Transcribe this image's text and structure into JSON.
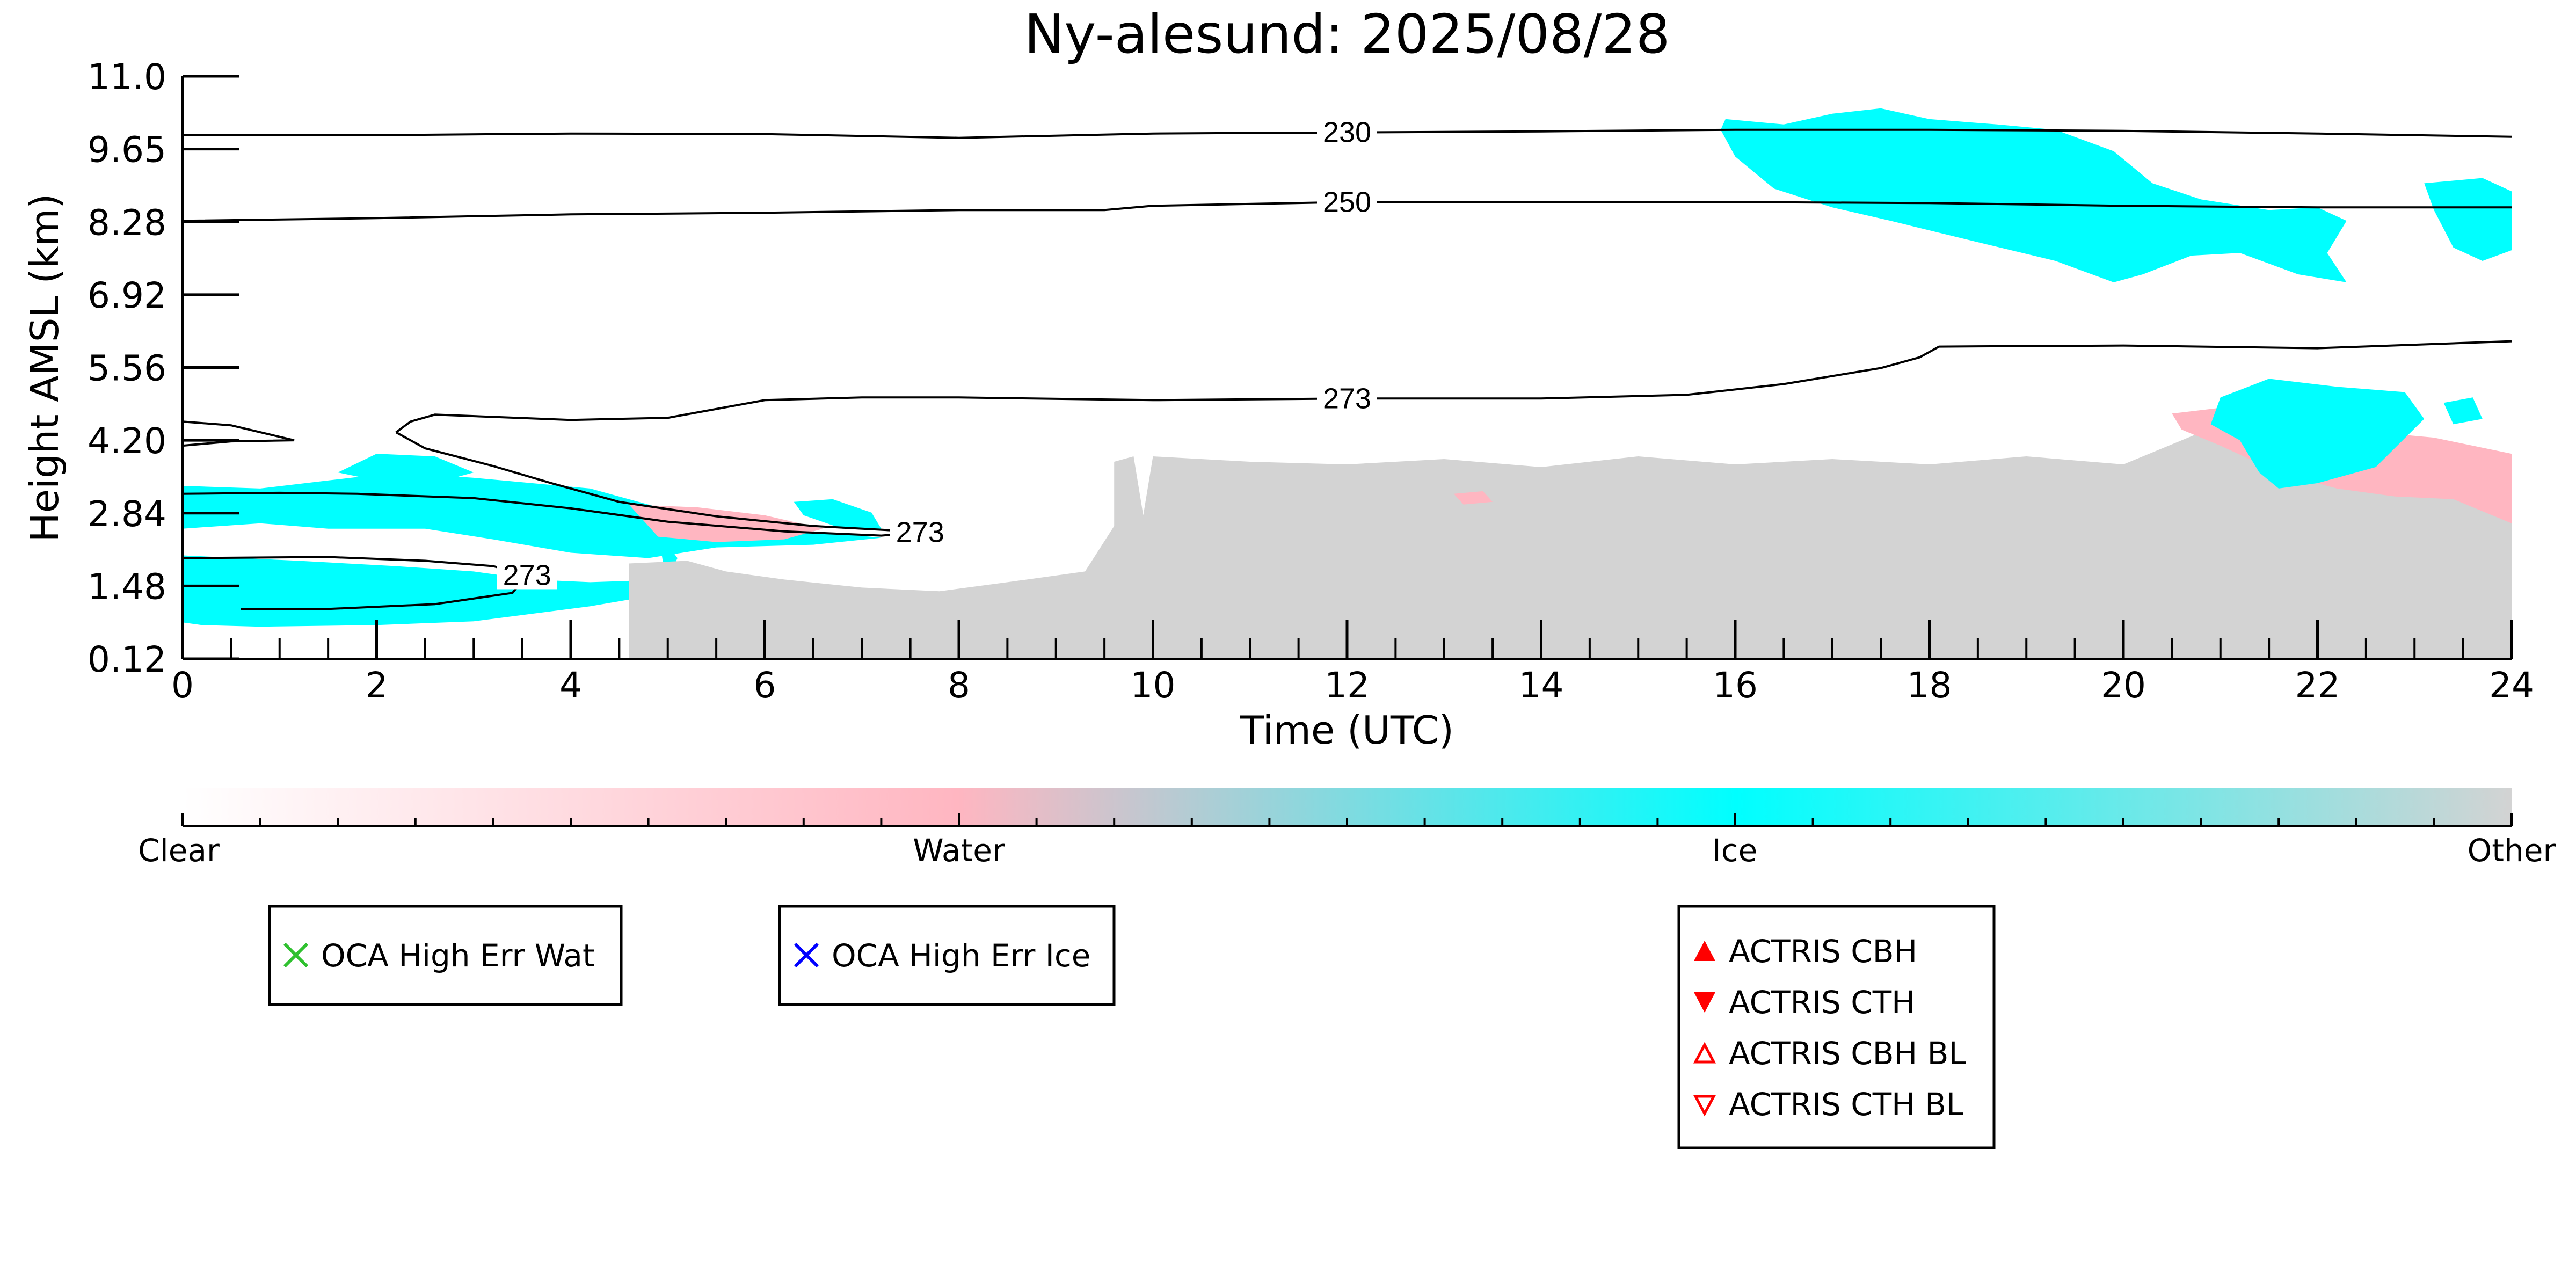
{
  "chart_data": {
    "type": "heatmap",
    "title": "Ny-alesund: 2025/08/28",
    "xlabel": "Time (UTC)",
    "ylabel": "Height AMSL (km)",
    "xlim": [
      0,
      24
    ],
    "ylim": [
      0.12,
      11.0
    ],
    "x_ticks": [
      "0",
      "2",
      "4",
      "6",
      "8",
      "10",
      "12",
      "14",
      "16",
      "18",
      "20",
      "22",
      "24"
    ],
    "y_ticks": [
      "0.12",
      "1.48",
      "2.84",
      "4.20",
      "5.56",
      "6.92",
      "8.28",
      "9.65",
      "11.0"
    ],
    "colors": {
      "clear": "#ffffff",
      "water": "#ffb6c1",
      "ice": "#00ffff",
      "other": "#d3d3d3"
    },
    "colorbar": {
      "labels": [
        "Clear",
        "Water",
        "Ice",
        "Other"
      ]
    },
    "contours": [
      {
        "level": "230",
        "points": [
          [
            0,
            9.9
          ],
          [
            2,
            9.9
          ],
          [
            4,
            9.93
          ],
          [
            6,
            9.92
          ],
          [
            8,
            9.85
          ],
          [
            10,
            9.93
          ],
          [
            12,
            9.95
          ],
          [
            14,
            9.97
          ],
          [
            16,
            10.0
          ],
          [
            18,
            10.0
          ],
          [
            20,
            9.98
          ],
          [
            22,
            9.93
          ],
          [
            24,
            9.87
          ]
        ]
      },
      {
        "level": "250",
        "points": [
          [
            0,
            8.3
          ],
          [
            2,
            8.35
          ],
          [
            4,
            8.42
          ],
          [
            6,
            8.45
          ],
          [
            8,
            8.5
          ],
          [
            9.5,
            8.5
          ],
          [
            10,
            8.58
          ],
          [
            12,
            8.65
          ],
          [
            14,
            8.65
          ],
          [
            16,
            8.65
          ],
          [
            18,
            8.63
          ],
          [
            20,
            8.58
          ],
          [
            22,
            8.55
          ],
          [
            24,
            8.55
          ]
        ]
      },
      {
        "level": "273",
        "points": [
          [
            2.2,
            4.35
          ],
          [
            2.35,
            4.55
          ],
          [
            2.6,
            4.68
          ],
          [
            4,
            4.58
          ],
          [
            5,
            4.62
          ],
          [
            6,
            4.95
          ],
          [
            7,
            5.0
          ],
          [
            8,
            5.0
          ],
          [
            10,
            4.95
          ],
          [
            12,
            4.98
          ],
          [
            14,
            4.98
          ],
          [
            15.5,
            5.05
          ],
          [
            16.5,
            5.25
          ],
          [
            17.5,
            5.55
          ],
          [
            17.9,
            5.75
          ],
          [
            18.1,
            5.95
          ],
          [
            20,
            5.97
          ],
          [
            22,
            5.92
          ],
          [
            24,
            6.05
          ]
        ]
      },
      {
        "level": "273",
        "points": [
          [
            2.2,
            4.35
          ],
          [
            2.5,
            4.05
          ],
          [
            3.2,
            3.72
          ],
          [
            3.8,
            3.4
          ],
          [
            4.5,
            3.05
          ],
          [
            5.5,
            2.78
          ],
          [
            6.5,
            2.6
          ],
          [
            7.3,
            2.52
          ],
          [
            7.6,
            2.48
          ],
          [
            7.2,
            2.42
          ],
          [
            6.2,
            2.5
          ],
          [
            5.0,
            2.68
          ],
          [
            4.0,
            2.93
          ],
          [
            3.0,
            3.12
          ],
          [
            1.8,
            3.2
          ],
          [
            1.0,
            3.22
          ],
          [
            0,
            3.2
          ]
        ]
      },
      {
        "level": "",
        "points": [
          [
            0,
            4.55
          ],
          [
            0.5,
            4.48
          ],
          [
            1.15,
            4.2
          ],
          [
            0.5,
            4.18
          ],
          [
            0,
            4.1
          ]
        ]
      },
      {
        "level": "273",
        "points": [
          [
            0,
            2.0
          ],
          [
            1.5,
            2.02
          ],
          [
            2.5,
            1.95
          ],
          [
            3.2,
            1.85
          ],
          [
            3.55,
            1.68
          ],
          [
            3.4,
            1.35
          ],
          [
            2.6,
            1.14
          ],
          [
            1.5,
            1.05
          ],
          [
            0.6,
            1.05
          ]
        ]
      }
    ],
    "regions": [
      {
        "class": "ice",
        "points": [
          [
            0,
            3.35
          ],
          [
            0.8,
            3.3
          ],
          [
            1.5,
            3.45
          ],
          [
            2.2,
            3.6
          ],
          [
            3.0,
            3.5
          ],
          [
            3.6,
            3.4
          ],
          [
            4.2,
            3.3
          ],
          [
            4.8,
            3.0
          ],
          [
            5.5,
            2.7
          ],
          [
            6.2,
            2.55
          ],
          [
            6.8,
            2.45
          ],
          [
            7.2,
            2.38
          ],
          [
            6.5,
            2.25
          ],
          [
            5.5,
            2.2
          ],
          [
            4.8,
            2.0
          ],
          [
            4.0,
            2.1
          ],
          [
            3.2,
            2.35
          ],
          [
            2.5,
            2.55
          ],
          [
            1.5,
            2.55
          ],
          [
            0.8,
            2.65
          ],
          [
            0,
            2.55
          ]
        ]
      },
      {
        "class": "ice",
        "points": [
          [
            1.6,
            3.6
          ],
          [
            2.0,
            3.95
          ],
          [
            2.6,
            3.9
          ],
          [
            3.0,
            3.6
          ],
          [
            2.6,
            3.4
          ],
          [
            2.0,
            3.45
          ]
        ]
      },
      {
        "class": "ice",
        "points": [
          [
            6.3,
            3.05
          ],
          [
            6.7,
            3.1
          ],
          [
            7.1,
            2.85
          ],
          [
            7.2,
            2.55
          ],
          [
            6.8,
            2.55
          ],
          [
            6.4,
            2.8
          ]
        ]
      },
      {
        "class": "ice",
        "points": [
          [
            0,
            2.05
          ],
          [
            1.2,
            1.95
          ],
          [
            2.2,
            1.85
          ],
          [
            3.0,
            1.75
          ],
          [
            3.6,
            1.6
          ],
          [
            4.2,
            1.55
          ],
          [
            5.0,
            1.6
          ],
          [
            5.1,
            2.0
          ],
          [
            4.9,
            2.5
          ],
          [
            5.0,
            1.35
          ],
          [
            4.2,
            1.1
          ],
          [
            3.0,
            0.82
          ],
          [
            2.0,
            0.75
          ],
          [
            0.8,
            0.72
          ],
          [
            0.2,
            0.75
          ],
          [
            0,
            0.8
          ]
        ]
      },
      {
        "class": "water",
        "points": [
          [
            4.6,
            3.0
          ],
          [
            5.3,
            2.95
          ],
          [
            6.0,
            2.8
          ],
          [
            6.6,
            2.55
          ],
          [
            6.2,
            2.35
          ],
          [
            5.5,
            2.3
          ],
          [
            4.9,
            2.4
          ]
        ]
      },
      {
        "class": "other",
        "points": [
          [
            4.6,
            1.9
          ],
          [
            5.2,
            1.95
          ],
          [
            5.6,
            1.75
          ],
          [
            6.2,
            1.6
          ],
          [
            7.0,
            1.45
          ],
          [
            7.8,
            1.38
          ],
          [
            8.5,
            1.55
          ],
          [
            9.3,
            1.75
          ],
          [
            9.6,
            2.6
          ],
          [
            9.6,
            3.8
          ],
          [
            9.8,
            3.9
          ],
          [
            9.9,
            2.8
          ],
          [
            10.0,
            3.9
          ],
          [
            11,
            3.8
          ],
          [
            12,
            3.75
          ],
          [
            13,
            3.85
          ],
          [
            14,
            3.7
          ],
          [
            15,
            3.9
          ],
          [
            16,
            3.75
          ],
          [
            17,
            3.85
          ],
          [
            18,
            3.75
          ],
          [
            19,
            3.9
          ],
          [
            20,
            3.75
          ],
          [
            21,
            4.5
          ],
          [
            22,
            4.1
          ],
          [
            23,
            3.9
          ],
          [
            24,
            3.8
          ],
          [
            24,
            0.12
          ],
          [
            4.6,
            0.12
          ]
        ]
      },
      {
        "class": "water",
        "points": [
          [
            20.5,
            4.7
          ],
          [
            21.2,
            4.85
          ],
          [
            22.0,
            4.6
          ],
          [
            22.6,
            4.35
          ],
          [
            23.2,
            4.25
          ],
          [
            24,
            3.95
          ],
          [
            24,
            2.65
          ],
          [
            23.4,
            3.1
          ],
          [
            22.8,
            3.15
          ],
          [
            22.2,
            3.3
          ],
          [
            21.6,
            3.6
          ],
          [
            21.0,
            4.1
          ],
          [
            20.6,
            4.4
          ]
        ]
      },
      {
        "class": "ice",
        "points": [
          [
            21.0,
            5.0
          ],
          [
            21.5,
            5.35
          ],
          [
            22.2,
            5.2
          ],
          [
            22.9,
            5.1
          ],
          [
            23.1,
            4.6
          ],
          [
            22.6,
            3.7
          ],
          [
            22.0,
            3.4
          ],
          [
            21.6,
            3.3
          ],
          [
            21.4,
            3.6
          ],
          [
            21.2,
            4.2
          ],
          [
            20.9,
            4.5
          ]
        ]
      },
      {
        "class": "ice",
        "points": [
          [
            23.3,
            4.9
          ],
          [
            23.6,
            5.0
          ],
          [
            23.7,
            4.6
          ],
          [
            23.4,
            4.5
          ]
        ]
      },
      {
        "class": "water",
        "points": [
          [
            13.1,
            3.2
          ],
          [
            13.4,
            3.25
          ],
          [
            13.5,
            3.05
          ],
          [
            13.2,
            3.0
          ]
        ]
      },
      {
        "class": "ice",
        "points": [
          [
            15.9,
            10.2
          ],
          [
            16.5,
            10.1
          ],
          [
            17.0,
            10.3
          ],
          [
            17.5,
            10.4
          ],
          [
            18.0,
            10.2
          ],
          [
            18.7,
            10.1
          ],
          [
            19.3,
            10.0
          ],
          [
            19.9,
            9.6
          ],
          [
            20.3,
            9.0
          ],
          [
            20.8,
            8.7
          ],
          [
            21.5,
            8.5
          ],
          [
            22.0,
            8.55
          ],
          [
            22.3,
            8.3
          ],
          [
            22.1,
            7.7
          ],
          [
            22.3,
            7.15
          ],
          [
            21.8,
            7.3
          ],
          [
            21.2,
            7.7
          ],
          [
            20.7,
            7.65
          ],
          [
            20.2,
            7.3
          ],
          [
            19.9,
            7.15
          ],
          [
            19.3,
            7.55
          ],
          [
            18.5,
            7.9
          ],
          [
            17.6,
            8.3
          ],
          [
            17.0,
            8.55
          ],
          [
            16.4,
            8.9
          ],
          [
            16.0,
            9.5
          ],
          [
            15.85,
            10.0
          ]
        ]
      },
      {
        "class": "ice",
        "points": [
          [
            23.1,
            9.0
          ],
          [
            23.7,
            9.1
          ],
          [
            24,
            8.85
          ],
          [
            24,
            7.75
          ],
          [
            23.7,
            7.55
          ],
          [
            23.4,
            7.8
          ],
          [
            23.2,
            8.5
          ]
        ]
      }
    ]
  }
}
